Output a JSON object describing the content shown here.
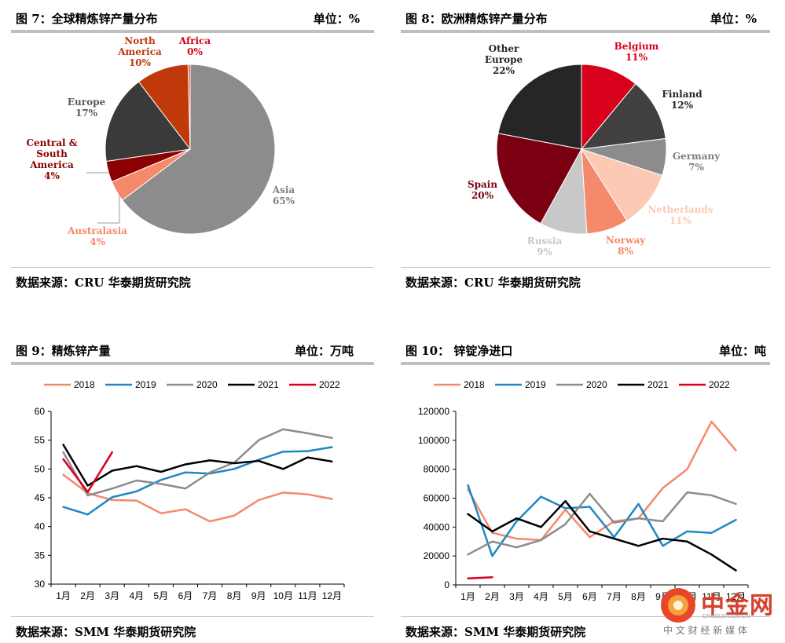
{
  "fig7": {
    "title": "图 7：全球精炼锌产量分布",
    "unit": "单位：%",
    "source": "数据来源：CRU  华泰期货研究院"
  },
  "fig8": {
    "title": "图 8：欧洲精炼锌产量分布",
    "unit": "单位：%",
    "source": "数据来源：CRU  华泰期货研究院"
  },
  "fig9": {
    "title": "图 9：精炼锌产量",
    "unit": "单位：万吨",
    "source": "数据来源：SMM  华泰期货研究院"
  },
  "fig10": {
    "title": "图 10：    锌锭净进口",
    "unit": "单位：吨",
    "source": "数据来源：SMM  华泰期货研究院"
  },
  "watermark": {
    "brand": "中金网",
    "domain": "CNGOLD.COM.CN",
    "tagline": "中 文 财 经 新 媒 体"
  },
  "chart_data": [
    {
      "type": "pie",
      "slices": [
        {
          "label": [
            "Asia"
          ],
          "pct": "65%",
          "value": 65,
          "color": "#8c8c8c"
        },
        {
          "label": [
            "Australasia"
          ],
          "pct": "4%",
          "value": 4,
          "color": "#f4896b"
        },
        {
          "label": [
            "Central &",
            "South",
            "America"
          ],
          "pct": "4%",
          "value": 4,
          "color": "#8b0000"
        },
        {
          "label": [
            "Europe"
          ],
          "pct": "17%",
          "value": 17,
          "color": "#3a3a3a"
        },
        {
          "label": [
            "North",
            "America"
          ],
          "pct": "10%",
          "value": 10,
          "color": "#c0390b"
        },
        {
          "label": [
            "Africa"
          ],
          "pct": "0%",
          "value": 0.4,
          "color": "#d84a1b"
        }
      ]
    },
    {
      "type": "pie",
      "slices": [
        {
          "label": [
            "Belgium"
          ],
          "pct": "11%",
          "value": 11,
          "color": "#d9001b"
        },
        {
          "label": [
            "Finland"
          ],
          "pct": "12%",
          "value": 12,
          "color": "#404040"
        },
        {
          "label": [
            "Germany"
          ],
          "pct": "7%",
          "value": 7,
          "color": "#8c8c8c"
        },
        {
          "label": [
            "Netherlands"
          ],
          "pct": "11%",
          "value": 11,
          "color": "#fcc9b5"
        },
        {
          "label": [
            "Norway"
          ],
          "pct": "8%",
          "value": 8,
          "color": "#f4896b"
        },
        {
          "label": [
            "Russia"
          ],
          "pct": "9%",
          "value": 9,
          "color": "#c8c8c8"
        },
        {
          "label": [
            "Spain"
          ],
          "pct": "20%",
          "value": 20,
          "color": "#7a0012"
        },
        {
          "label": [
            "Other",
            "Europe"
          ],
          "pct": "22%",
          "value": 22,
          "color": "#262626"
        }
      ]
    },
    {
      "type": "line",
      "categories": [
        "1月",
        "2月",
        "3月",
        "4月",
        "5月",
        "6月",
        "7月",
        "8月",
        "9月",
        "10月",
        "11月",
        "12月"
      ],
      "ylim": [
        30,
        60
      ],
      "yticks": [
        30,
        35,
        40,
        45,
        50,
        55,
        60
      ],
      "series": [
        {
          "name": "2018",
          "color": "#f4896b",
          "values": [
            49,
            45.8,
            44.6,
            44.5,
            42.3,
            43,
            40.9,
            41.9,
            44.6,
            45.9,
            45.6,
            44.8
          ]
        },
        {
          "name": "2019",
          "color": "#1f87c4",
          "values": [
            43.4,
            42.1,
            45.1,
            46.1,
            48.1,
            49.4,
            49.2,
            50,
            51.6,
            53,
            53.1,
            53.8
          ]
        },
        {
          "name": "2020",
          "color": "#8c8c8c",
          "values": [
            52.9,
            45.4,
            46.6,
            48,
            47.4,
            46.6,
            49.4,
            51.1,
            55,
            56.9,
            56.2,
            55.4
          ]
        },
        {
          "name": "2021",
          "color": "#000000",
          "values": [
            54.2,
            47.1,
            49.7,
            50.5,
            49.5,
            50.8,
            51.5,
            51,
            51.4,
            50,
            52,
            51.3
          ]
        },
        {
          "name": "2022",
          "color": "#d9001b",
          "values": [
            51.7,
            46,
            52.9,
            null,
            null,
            null,
            null,
            null,
            null,
            null,
            null,
            null
          ]
        }
      ]
    },
    {
      "type": "line",
      "categories": [
        "1月",
        "2月",
        "3月",
        "4月",
        "5月",
        "6月",
        "7月",
        "8月",
        "9月",
        "10月",
        "11月",
        "12月"
      ],
      "ylim": [
        0,
        120000
      ],
      "yticks": [
        0,
        20000,
        40000,
        60000,
        80000,
        100000,
        120000
      ],
      "series": [
        {
          "name": "2018",
          "color": "#f4896b",
          "values": [
            66000,
            36000,
            32000,
            31000,
            52000,
            33000,
            44000,
            46000,
            67000,
            80000,
            113000,
            93000
          ]
        },
        {
          "name": "2019",
          "color": "#1f87c4",
          "values": [
            69000,
            20000,
            44000,
            61000,
            53000,
            54000,
            33000,
            56000,
            27000,
            37000,
            36000,
            45000
          ]
        },
        {
          "name": "2020",
          "color": "#8c8c8c",
          "values": [
            21000,
            30000,
            26000,
            31000,
            42000,
            63000,
            43000,
            46000,
            44000,
            64000,
            62000,
            56000
          ]
        },
        {
          "name": "2021",
          "color": "#000000",
          "values": [
            49000,
            37000,
            46000,
            40000,
            58000,
            37000,
            32000,
            27000,
            32000,
            30000,
            21000,
            10000
          ]
        },
        {
          "name": "2022",
          "color": "#d9001b",
          "values": [
            4500,
            5300,
            null,
            null,
            null,
            null,
            null,
            null,
            null,
            null,
            null,
            null
          ]
        }
      ]
    }
  ]
}
